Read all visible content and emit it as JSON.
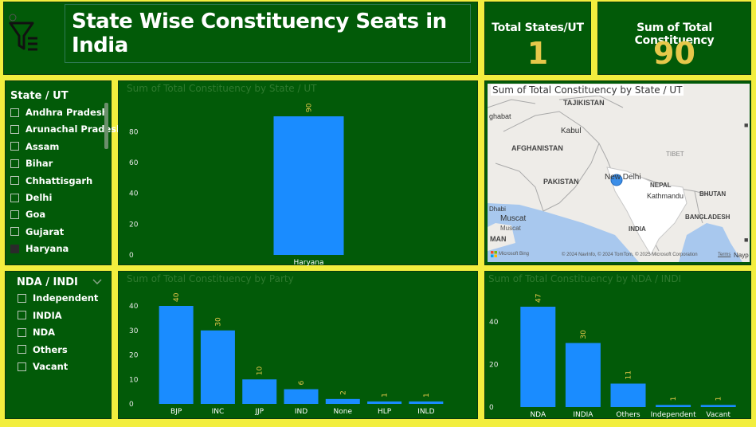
{
  "header": {
    "title": "State Wise Constituency Seats in India",
    "filter_icon": "filter-icon"
  },
  "cards": {
    "states": {
      "label": "Total States/UT",
      "value": "1"
    },
    "constituency": {
      "label": "Sum of Total Constituency",
      "value": "90"
    }
  },
  "state_slicer": {
    "header": "State / UT",
    "items": [
      {
        "label": "Andhra Pradesh",
        "checked": false
      },
      {
        "label": "Arunachal Pradesh",
        "checked": false
      },
      {
        "label": "Assam",
        "checked": false
      },
      {
        "label": "Bihar",
        "checked": false
      },
      {
        "label": "Chhattisgarh",
        "checked": false
      },
      {
        "label": "Delhi",
        "checked": false
      },
      {
        "label": "Goa",
        "checked": false
      },
      {
        "label": "Gujarat",
        "checked": false
      },
      {
        "label": "Haryana",
        "checked": true
      }
    ]
  },
  "nda_slicer": {
    "header": "NDA / INDI",
    "items": [
      {
        "label": "Independent",
        "checked": false
      },
      {
        "label": "INDIA",
        "checked": false
      },
      {
        "label": "NDA",
        "checked": false
      },
      {
        "label": "Others",
        "checked": false
      },
      {
        "label": "Vacant",
        "checked": false
      }
    ]
  },
  "map": {
    "title": "Sum of Total Constituency by State / UT",
    "labels": [
      "TAJIKISTAN",
      "AFGHANISTAN",
      "PAKISTAN",
      "NEPAL",
      "BHUTAN",
      "BANGLADESH",
      "INDIA",
      "TIBET",
      "Kabul",
      "New Delhi",
      "Kathmandu",
      "Muscat",
      "Muscat",
      "MAN",
      "ghabat",
      "Dhabi"
    ],
    "attribution": "© 2024 NavInfo, © 2024 TomTom, © 2025 Microsoft Corporation",
    "terms": "Terms",
    "cut": "Nayp",
    "brand": "Microsoft Bing"
  },
  "chart_data": [
    {
      "type": "bar",
      "title": "Sum of Total Constituency by State / UT",
      "categories": [
        "Haryana"
      ],
      "values": [
        90
      ],
      "ylim": [
        0,
        90
      ],
      "yticks": [
        0,
        20,
        40,
        60,
        80
      ],
      "color": "#1a8cff"
    },
    {
      "type": "bar",
      "title": "Sum of Total Constituency by Party",
      "categories": [
        "BJP",
        "INC",
        "JJP",
        "IND",
        "None",
        "HLP",
        "INLD"
      ],
      "values": [
        40,
        30,
        10,
        6,
        2,
        1,
        1
      ],
      "ylim": [
        0,
        40
      ],
      "yticks": [
        0,
        10,
        20,
        30,
        40
      ],
      "color": "#1a8cff"
    },
    {
      "type": "bar",
      "title": "Sum of Total Constituency by NDA / INDI",
      "categories": [
        "NDA",
        "INDIA",
        "Others",
        "Independent",
        "Vacant"
      ],
      "values": [
        47,
        30,
        11,
        1,
        1
      ],
      "ylim": [
        0,
        47
      ],
      "yticks": [
        0,
        20,
        40
      ],
      "color": "#1a8cff"
    }
  ]
}
